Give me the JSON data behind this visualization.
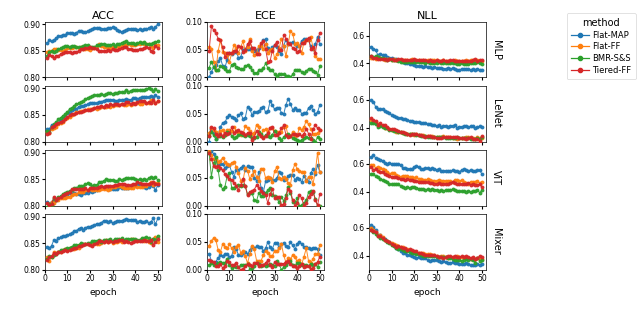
{
  "methods": [
    "Flat-MAP",
    "Flat-FF",
    "BMR-S&S",
    "Tiered-FF"
  ],
  "colors": [
    "#1f77b4",
    "#ff7f0e",
    "#2ca02c",
    "#d62728"
  ],
  "row_labels": [
    "MLP",
    "LeNet",
    "ViT",
    "Mixer"
  ],
  "col_labels": [
    "ACC",
    "ECE",
    "NLL"
  ],
  "n_epochs": 50,
  "legend_title": "method",
  "xlabel": "epoch",
  "acc_ylim": [
    0.8,
    0.905
  ],
  "ece_ylim": [
    0.0,
    0.1
  ],
  "nll_ylim": [
    0.3,
    0.7
  ],
  "acc_yticks": [
    0.8,
    0.85,
    0.9
  ],
  "ece_yticks": [
    0.0,
    0.05,
    0.1
  ],
  "nll_yticks": [
    0.4,
    0.6
  ]
}
